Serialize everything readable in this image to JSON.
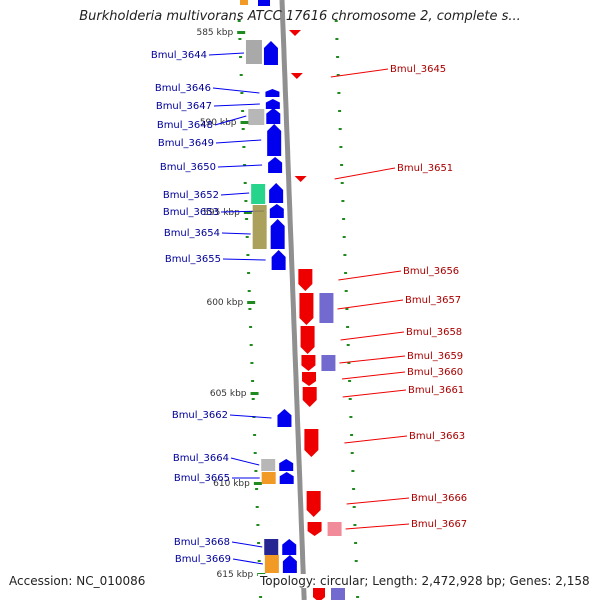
{
  "title": "Burkholderia multivorans ATCC 17616 chromosome 2, complete s...",
  "footer": {
    "accession": "Accession: NC_010086",
    "summary": "Topology: circular; Length: 2,472,928 bp; Genes: 2,158"
  },
  "colors": {
    "forward": "#0000ee",
    "reverse": "#ee0000",
    "forward_label": "#000099",
    "reverse_label": "#aa0000",
    "backbone": "#909090",
    "tick": "#1f8a1f"
  },
  "scale": {
    "labels": [
      "585 kbp",
      "590 kbp",
      "595 kbp",
      "600 kbp",
      "605 kbp",
      "610 kbp",
      "615 kbp"
    ]
  },
  "genes": [
    {
      "name": "Bmul_3644",
      "strand": "forward"
    },
    {
      "name": "Bmul_3645",
      "strand": "reverse"
    },
    {
      "name": "Bmul_3646",
      "strand": "forward"
    },
    {
      "name": "Bmul_3647",
      "strand": "forward"
    },
    {
      "name": "Bmul_3648",
      "strand": "forward"
    },
    {
      "name": "Bmul_3649",
      "strand": "forward"
    },
    {
      "name": "Bmul_3650",
      "strand": "forward"
    },
    {
      "name": "Bmul_3651",
      "strand": "reverse"
    },
    {
      "name": "Bmul_3652",
      "strand": "forward"
    },
    {
      "name": "Bmul_3653",
      "strand": "forward"
    },
    {
      "name": "Bmul_3654",
      "strand": "forward"
    },
    {
      "name": "Bmul_3655",
      "strand": "forward"
    },
    {
      "name": "Bmul_3656",
      "strand": "reverse"
    },
    {
      "name": "Bmul_3657",
      "strand": "reverse"
    },
    {
      "name": "Bmul_3658",
      "strand": "reverse"
    },
    {
      "name": "Bmul_3659",
      "strand": "reverse"
    },
    {
      "name": "Bmul_3660",
      "strand": "reverse"
    },
    {
      "name": "Bmul_3661",
      "strand": "reverse"
    },
    {
      "name": "Bmul_3662",
      "strand": "forward"
    },
    {
      "name": "Bmul_3663",
      "strand": "reverse"
    },
    {
      "name": "Bmul_3664",
      "strand": "forward"
    },
    {
      "name": "Bmul_3665",
      "strand": "forward"
    },
    {
      "name": "Bmul_3666",
      "strand": "reverse"
    },
    {
      "name": "Bmul_3667",
      "strand": "reverse"
    },
    {
      "name": "Bmul_3668",
      "strand": "forward"
    },
    {
      "name": "Bmul_3669",
      "strand": "forward"
    }
  ]
}
